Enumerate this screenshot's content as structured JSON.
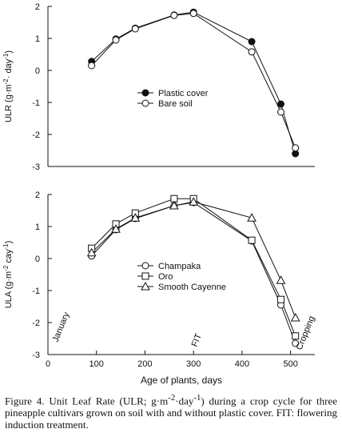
{
  "chart_data": [
    {
      "type": "line",
      "ylabel_parts": [
        "ULR (g·m",
        "-2",
        "· day",
        "-1",
        ")"
      ],
      "ylim": [
        -3,
        2
      ],
      "yticks": [
        -3,
        -2,
        -1,
        0,
        1,
        2
      ],
      "xlim": [
        0,
        550
      ],
      "legend_position": "center",
      "series": [
        {
          "name": "Plastic cover",
          "marker": "filled-circle",
          "x": [
            90,
            140,
            180,
            260,
            300,
            420,
            480,
            510
          ],
          "y": [
            0.28,
            0.98,
            1.32,
            1.73,
            1.82,
            0.9,
            -1.05,
            -2.6
          ]
        },
        {
          "name": "Bare soil",
          "marker": "open-circle",
          "x": [
            90,
            140,
            180,
            260,
            300,
            420,
            480,
            510
          ],
          "y": [
            0.15,
            0.95,
            1.3,
            1.72,
            1.78,
            0.58,
            -1.3,
            -2.42
          ]
        }
      ]
    },
    {
      "type": "line",
      "ylabel_parts": [
        "ULA (g·m",
        "-2",
        " cay",
        "-1",
        ")"
      ],
      "ylim": [
        -3,
        2
      ],
      "yticks": [
        -3,
        -2,
        -1,
        0,
        1,
        2
      ],
      "xlim": [
        0,
        550
      ],
      "xticks": [
        0,
        100,
        200,
        300,
        400,
        500
      ],
      "xlabel": "Age of plants, days",
      "legend_position": "center",
      "annotations": [
        "January",
        "FIT",
        "Cropping"
      ],
      "series": [
        {
          "name": "Champaka",
          "marker": "open-circle",
          "x": [
            90,
            140,
            180,
            260,
            300,
            420,
            480,
            510
          ],
          "y": [
            0.08,
            0.9,
            1.25,
            1.65,
            1.75,
            0.55,
            -1.45,
            -2.65
          ]
        },
        {
          "name": "Oro",
          "marker": "open-square",
          "x": [
            90,
            140,
            180,
            260,
            300,
            420,
            480,
            510
          ],
          "y": [
            0.32,
            1.08,
            1.42,
            1.87,
            1.87,
            0.57,
            -1.28,
            -2.42
          ]
        },
        {
          "name": "Smooth Cayenne",
          "marker": "open-triangle",
          "x": [
            90,
            140,
            180,
            260,
            300,
            420,
            480,
            510
          ],
          "y": [
            0.18,
            0.92,
            1.27,
            1.65,
            1.77,
            1.27,
            -0.68,
            -1.85
          ]
        }
      ]
    }
  ],
  "caption": {
    "prefix": "Figure 4. Unit Leaf Rate (ULR; g·m",
    "sup1": "-2",
    "mid": "·day",
    "sup2": "-1",
    "suffix": ") during a crop cycle for three pineapple cultivars grown on soil with and without plastic cover. FIT: flowering induction treatment."
  }
}
